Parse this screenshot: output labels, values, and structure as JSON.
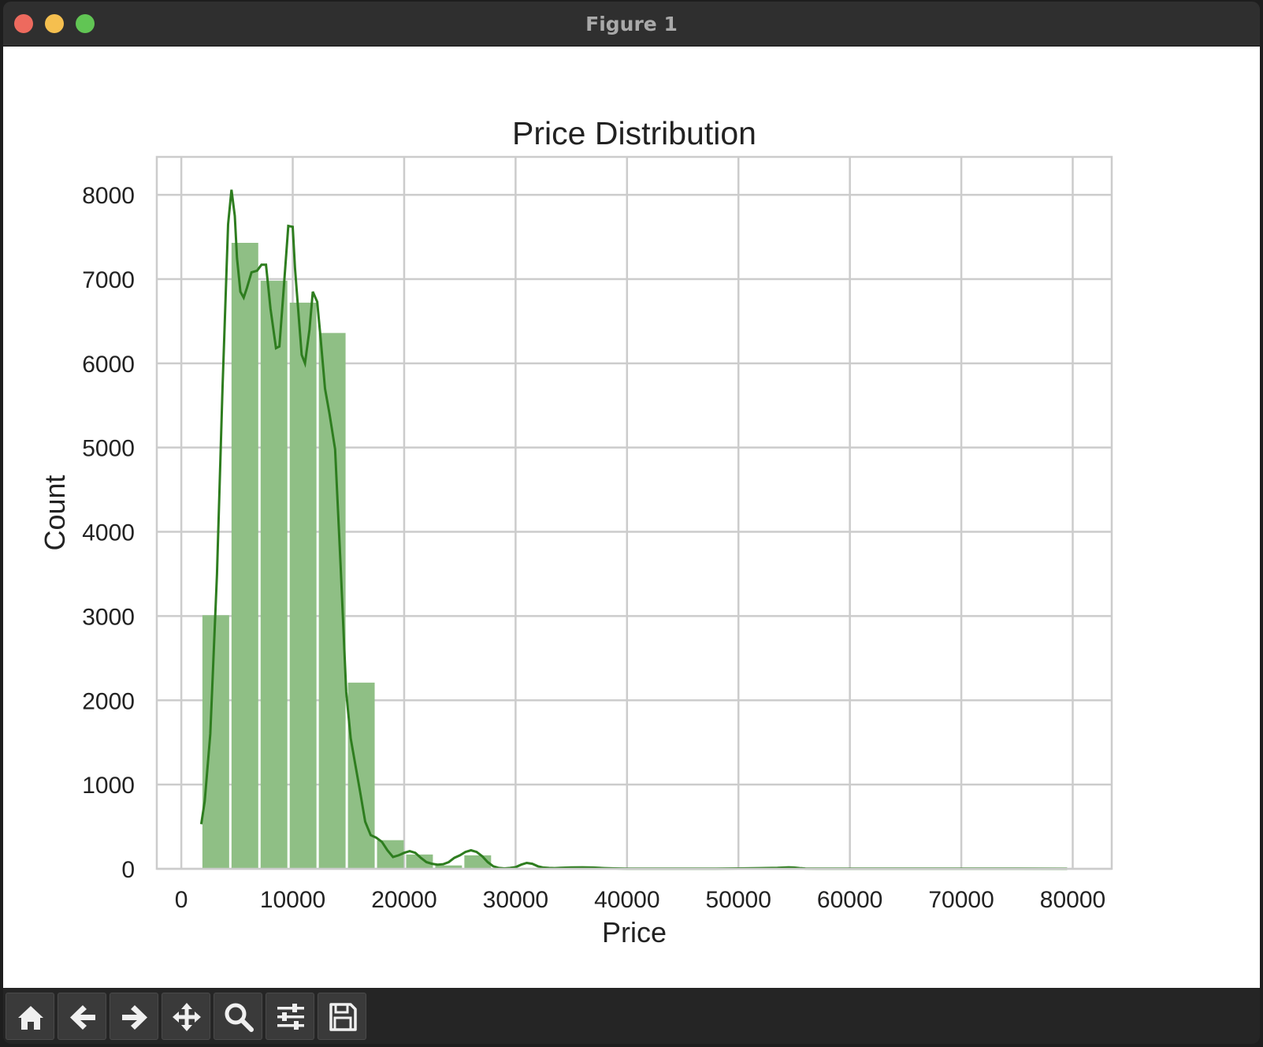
{
  "window": {
    "title": "Figure 1"
  },
  "toolbar": {
    "buttons": [
      {
        "name": "home-button",
        "icon": "home-icon"
      },
      {
        "name": "back-button",
        "icon": "arrow-left-icon"
      },
      {
        "name": "forward-button",
        "icon": "arrow-right-icon"
      },
      {
        "name": "pan-button",
        "icon": "move-icon"
      },
      {
        "name": "zoom-button",
        "icon": "magnifier-icon"
      },
      {
        "name": "configure-subplots-button",
        "icon": "sliders-icon"
      },
      {
        "name": "save-button",
        "icon": "floppy-disk-icon"
      }
    ]
  },
  "colors": {
    "bar_fill": "#8fbf85",
    "kde_line": "#2e7d1f",
    "grid": "#cccccc",
    "text": "#222222"
  },
  "chart_data": {
    "type": "bar",
    "title": "Price Distribution",
    "xlabel": "Price",
    "ylabel": "Count",
    "xlim": [
      -2200,
      83500
    ],
    "ylim": [
      0,
      8450
    ],
    "grid": true,
    "xticks": [
      0,
      10000,
      20000,
      30000,
      40000,
      50000,
      60000,
      70000,
      80000
    ],
    "yticks": [
      0,
      1000,
      2000,
      3000,
      4000,
      5000,
      6000,
      7000,
      8000
    ],
    "bins": {
      "edges": [
        1788,
        4400,
        7012,
        9624,
        12236,
        14848,
        17460,
        20072,
        22684,
        25296,
        27908
      ],
      "counts": [
        3010,
        7430,
        6980,
        6720,
        6360,
        2210,
        340,
        170,
        40,
        160
      ]
    },
    "kde": {
      "x": [
        1788,
        2100,
        2600,
        3200,
        3700,
        4200,
        4500,
        4800,
        5000,
        5300,
        5600,
        5900,
        6300,
        6800,
        7200,
        7600,
        8000,
        8500,
        8800,
        9200,
        9600,
        10000,
        10200,
        10500,
        10800,
        11100,
        11500,
        11800,
        12200,
        12500,
        12900,
        13300,
        13800,
        14300,
        14800,
        15200,
        15600,
        16000,
        16500,
        17000,
        17500,
        18000,
        18500,
        19000,
        19500,
        20000,
        20500,
        21000,
        21500,
        22000,
        22500,
        23000,
        23500,
        24000,
        24500,
        25000,
        25500,
        26000,
        26500,
        27000,
        27500,
        28000,
        28500,
        29000,
        29500,
        30000,
        30500,
        31000,
        31500,
        32000,
        32500,
        33000,
        33500,
        34000,
        35000,
        36000,
        37000,
        38000,
        39000,
        40000,
        42000,
        45000,
        48000,
        50000,
        52000,
        53500,
        54500,
        55000,
        55500,
        56000,
        57000,
        60000,
        65000,
        70000,
        75000,
        79500
      ],
      "y": [
        530,
        800,
        1600,
        3500,
        5700,
        7650,
        8060,
        7750,
        7250,
        6850,
        6780,
        6900,
        7080,
        7100,
        7170,
        7170,
        6650,
        6180,
        6200,
        6900,
        7630,
        7620,
        7130,
        6620,
        6100,
        6000,
        6400,
        6850,
        6730,
        6300,
        5700,
        5400,
        4980,
        3600,
        2100,
        1550,
        1250,
        950,
        560,
        400,
        370,
        320,
        220,
        140,
        160,
        190,
        210,
        190,
        130,
        80,
        60,
        50,
        55,
        80,
        130,
        160,
        200,
        220,
        200,
        150,
        80,
        30,
        10,
        5,
        10,
        20,
        50,
        70,
        60,
        30,
        15,
        10,
        8,
        12,
        16,
        18,
        15,
        8,
        5,
        3,
        2,
        2,
        3,
        5,
        8,
        12,
        18,
        15,
        8,
        4,
        3,
        3,
        2,
        3,
        2,
        1
      ]
    }
  }
}
